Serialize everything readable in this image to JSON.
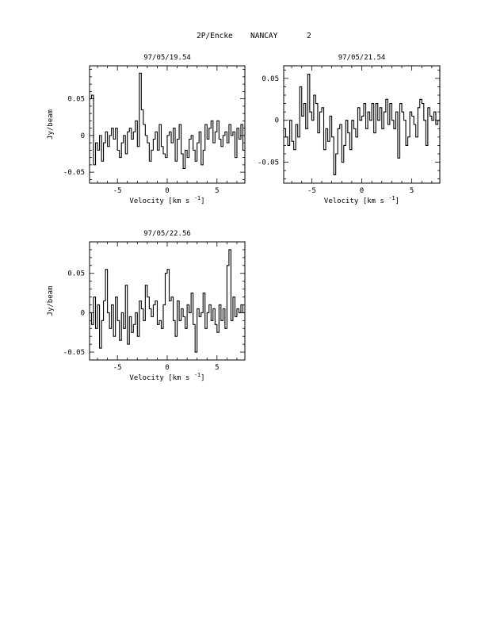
{
  "page": {
    "title_object": "2P/Encke",
    "title_site": "NANCAY",
    "title_number": "2"
  },
  "chart_data": [
    {
      "type": "line",
      "title": "97/05/19.54",
      "xlabel": "Velocity [km s",
      "xlabel_exp": "-1",
      "xlabel_end": "]",
      "ylabel": "Jy/beam",
      "xlim": [
        -7.8,
        7.8
      ],
      "ylim": [
        -0.065,
        0.095
      ],
      "xticks": [
        -5,
        0,
        5
      ],
      "xtick_labels": [
        "-5",
        "0",
        "5"
      ],
      "yticks": [
        -0.05,
        0,
        0.05
      ],
      "ytick_labels": [
        "-0.05",
        "0",
        "0.05"
      ],
      "grid": false,
      "step": true,
      "x": [
        -7.8,
        -7.6,
        -7.4,
        -7.2,
        -7.0,
        -6.8,
        -6.6,
        -6.4,
        -6.2,
        -6.0,
        -5.8,
        -5.6,
        -5.4,
        -5.2,
        -5.0,
        -4.8,
        -4.6,
        -4.4,
        -4.2,
        -4.0,
        -3.8,
        -3.6,
        -3.4,
        -3.2,
        -3.0,
        -2.8,
        -2.6,
        -2.4,
        -2.2,
        -2.0,
        -1.8,
        -1.6,
        -1.4,
        -1.2,
        -1.0,
        -0.8,
        -0.6,
        -0.4,
        -0.2,
        0.0,
        0.2,
        0.4,
        0.6,
        0.8,
        1.0,
        1.2,
        1.4,
        1.6,
        1.8,
        2.0,
        2.2,
        2.4,
        2.6,
        2.8,
        3.0,
        3.2,
        3.4,
        3.6,
        3.8,
        4.0,
        4.2,
        4.4,
        4.6,
        4.8,
        5.0,
        5.2,
        5.4,
        5.6,
        5.8,
        6.0,
        6.2,
        6.4,
        6.6,
        6.8,
        7.0,
        7.2,
        7.4,
        7.6
      ],
      "y": [
        0.05,
        0.055,
        -0.04,
        -0.01,
        -0.02,
        0.0,
        -0.035,
        -0.01,
        0.005,
        -0.015,
        0.0,
        0.01,
        -0.005,
        0.01,
        -0.02,
        -0.03,
        -0.01,
        0.0,
        -0.025,
        0.005,
        0.01,
        -0.005,
        0.005,
        0.02,
        -0.015,
        0.085,
        0.035,
        0.015,
        0.0,
        -0.01,
        -0.035,
        -0.02,
        -0.005,
        0.005,
        -0.02,
        0.015,
        -0.015,
        -0.025,
        -0.03,
        0.0,
        0.005,
        -0.01,
        0.01,
        -0.035,
        -0.005,
        0.015,
        -0.025,
        -0.045,
        -0.02,
        -0.03,
        -0.005,
        0.0,
        -0.02,
        -0.035,
        -0.01,
        0.005,
        -0.04,
        -0.02,
        0.015,
        -0.005,
        0.01,
        0.02,
        -0.01,
        0.005,
        0.02,
        -0.005,
        -0.015,
        0.0,
        0.005,
        -0.01,
        0.015,
        0.0,
        0.005,
        -0.03,
        0.01,
        -0.005,
        0.015,
        -0.02
      ]
    },
    {
      "type": "line",
      "title": "97/05/21.54",
      "xlabel": "Velocity [km s",
      "xlabel_exp": "-1",
      "xlabel_end": "]",
      "ylabel": "",
      "xlim": [
        -7.8,
        7.8
      ],
      "ylim": [
        -0.075,
        0.065
      ],
      "xticks": [
        -5,
        0,
        5
      ],
      "xtick_labels": [
        "-5",
        "0",
        "5"
      ],
      "yticks": [
        -0.05,
        0,
        0.05
      ],
      "ytick_labels": [
        "-0.05",
        "0",
        "0.05"
      ],
      "grid": false,
      "step": true,
      "x": [
        -7.8,
        -7.6,
        -7.4,
        -7.2,
        -7.0,
        -6.8,
        -6.6,
        -6.4,
        -6.2,
        -6.0,
        -5.8,
        -5.6,
        -5.4,
        -5.2,
        -5.0,
        -4.8,
        -4.6,
        -4.4,
        -4.2,
        -4.0,
        -3.8,
        -3.6,
        -3.4,
        -3.2,
        -3.0,
        -2.8,
        -2.6,
        -2.4,
        -2.2,
        -2.0,
        -1.8,
        -1.6,
        -1.4,
        -1.2,
        -1.0,
        -0.8,
        -0.6,
        -0.4,
        -0.2,
        0.0,
        0.2,
        0.4,
        0.6,
        0.8,
        1.0,
        1.2,
        1.4,
        1.6,
        1.8,
        2.0,
        2.2,
        2.4,
        2.6,
        2.8,
        3.0,
        3.2,
        3.4,
        3.6,
        3.8,
        4.0,
        4.2,
        4.4,
        4.6,
        4.8,
        5.0,
        5.2,
        5.4,
        5.6,
        5.8,
        6.0,
        6.2,
        6.4,
        6.6,
        6.8,
        7.0,
        7.2,
        7.4,
        7.6
      ],
      "y": [
        -0.01,
        -0.02,
        -0.03,
        0.0,
        -0.025,
        -0.035,
        -0.005,
        -0.02,
        0.04,
        0.005,
        0.02,
        -0.01,
        0.055,
        0.01,
        0.0,
        0.03,
        0.02,
        -0.015,
        0.01,
        0.015,
        -0.035,
        -0.01,
        -0.025,
        0.005,
        -0.02,
        -0.065,
        -0.04,
        -0.01,
        -0.005,
        -0.05,
        -0.03,
        0.0,
        -0.015,
        -0.035,
        0.0,
        -0.01,
        -0.02,
        0.015,
        0.0,
        0.005,
        0.02,
        -0.01,
        0.01,
        0.0,
        0.02,
        -0.015,
        0.02,
        0.0,
        0.015,
        -0.01,
        0.01,
        0.025,
        -0.005,
        0.02,
        0.0,
        -0.01,
        0.01,
        -0.045,
        0.02,
        0.01,
        0.0,
        -0.03,
        -0.02,
        0.01,
        0.005,
        -0.005,
        -0.02,
        0.015,
        0.025,
        0.02,
        0.0,
        -0.03,
        0.015,
        0.005,
        0.0,
        0.01,
        -0.005,
        0.0
      ]
    },
    {
      "type": "line",
      "title": "97/05/22.56",
      "xlabel": "Velocity [km s",
      "xlabel_exp": "-1",
      "xlabel_end": "]",
      "ylabel": "Jy/beam",
      "xlim": [
        -7.8,
        7.8
      ],
      "ylim": [
        -0.06,
        0.09
      ],
      "xticks": [
        -5,
        0,
        5
      ],
      "xtick_labels": [
        "-5",
        "0",
        "5"
      ],
      "yticks": [
        -0.05,
        0,
        0.05
      ],
      "ytick_labels": [
        "-0.05",
        "0",
        "0.05"
      ],
      "grid": false,
      "step": true,
      "x": [
        -7.8,
        -7.6,
        -7.4,
        -7.2,
        -7.0,
        -6.8,
        -6.6,
        -6.4,
        -6.2,
        -6.0,
        -5.8,
        -5.6,
        -5.4,
        -5.2,
        -5.0,
        -4.8,
        -4.6,
        -4.4,
        -4.2,
        -4.0,
        -3.8,
        -3.6,
        -3.4,
        -3.2,
        -3.0,
        -2.8,
        -2.6,
        -2.4,
        -2.2,
        -2.0,
        -1.8,
        -1.6,
        -1.4,
        -1.2,
        -1.0,
        -0.8,
        -0.6,
        -0.4,
        -0.2,
        0.0,
        0.2,
        0.4,
        0.6,
        0.8,
        1.0,
        1.2,
        1.4,
        1.6,
        1.8,
        2.0,
        2.2,
        2.4,
        2.6,
        2.8,
        3.0,
        3.2,
        3.4,
        3.6,
        3.8,
        4.0,
        4.2,
        4.4,
        4.6,
        4.8,
        5.0,
        5.2,
        5.4,
        5.6,
        5.8,
        6.0,
        6.2,
        6.4,
        6.6,
        6.8,
        7.0,
        7.2,
        7.4,
        7.6
      ],
      "y": [
        0.0,
        -0.015,
        0.02,
        -0.02,
        0.01,
        -0.045,
        -0.01,
        0.015,
        0.055,
        0.0,
        -0.02,
        0.01,
        -0.03,
        0.02,
        -0.01,
        -0.035,
        0.0,
        -0.02,
        0.035,
        -0.04,
        -0.005,
        -0.025,
        -0.015,
        0.0,
        -0.03,
        0.015,
        0.005,
        -0.01,
        0.035,
        0.02,
        0.005,
        -0.005,
        0.01,
        0.015,
        -0.015,
        -0.01,
        -0.02,
        0.01,
        0.05,
        0.055,
        0.015,
        0.02,
        -0.01,
        -0.03,
        0.015,
        -0.01,
        0.005,
        -0.005,
        -0.02,
        0.01,
        0.0,
        0.025,
        -0.015,
        -0.05,
        0.005,
        -0.005,
        0.0,
        0.025,
        -0.02,
        0.0,
        0.01,
        -0.01,
        0.005,
        -0.015,
        -0.025,
        0.01,
        -0.01,
        0.005,
        -0.02,
        0.06,
        0.08,
        -0.01,
        0.02,
        -0.005,
        0.005,
        0.0,
        0.01,
        0.0
      ]
    }
  ]
}
